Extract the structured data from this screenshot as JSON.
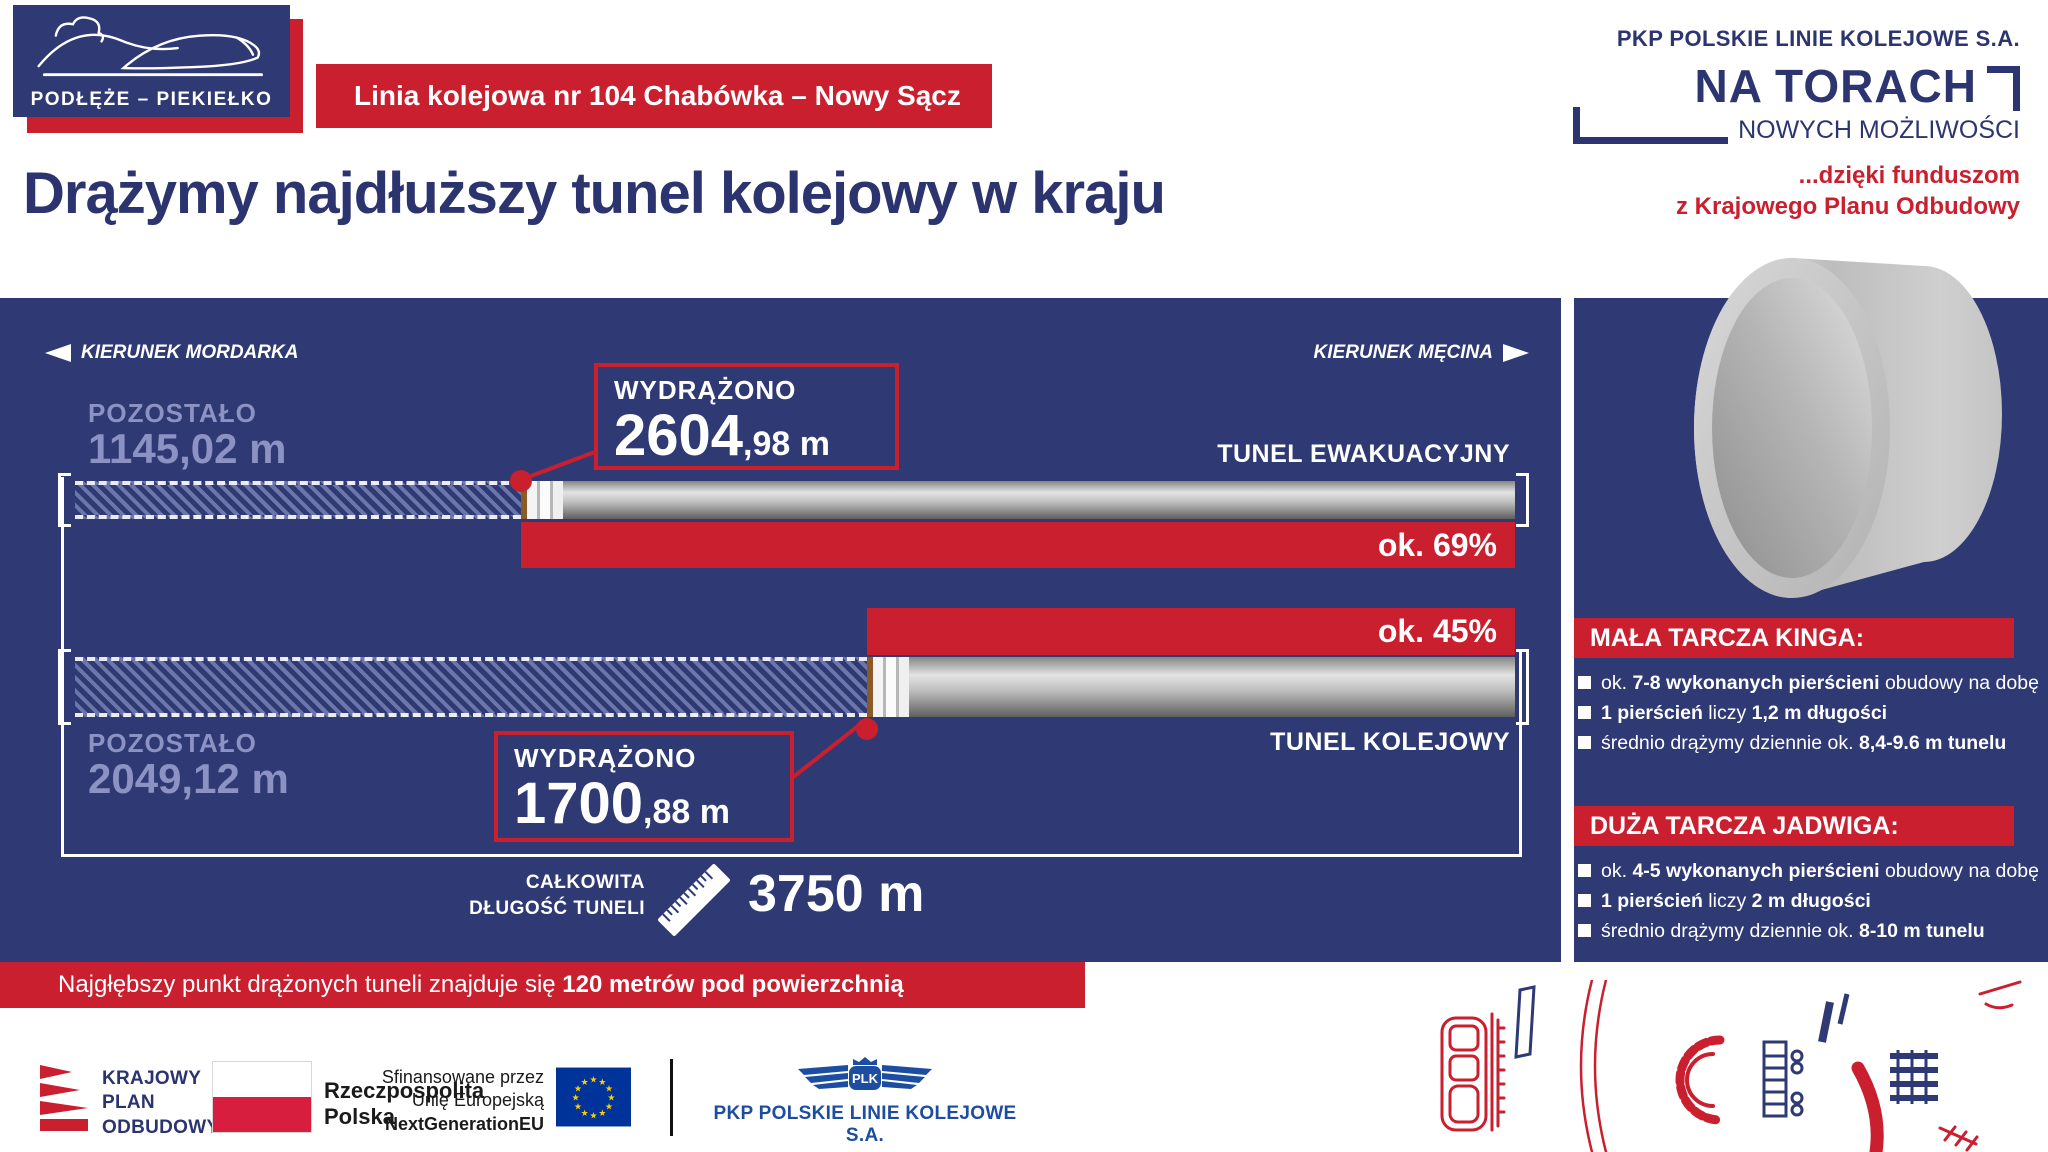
{
  "header": {
    "logo_title": "PODŁĘŻE – PIEKIEŁKO",
    "banner": "Linia kolejowa nr 104 Chabówka – Nowy Sącz",
    "title": "Drążymy najdłuższy tunel kolejowy w kraju",
    "company": "PKP POLSKIE LINIE KOLEJOWE S.A.",
    "brand_line1": "NA TORACH",
    "brand_line2": "NOWYCH MOŻLIWOŚCI",
    "funding_line1": "...dzięki funduszom",
    "funding_line2": "z Krajowego Planu Odbudowy"
  },
  "diagram": {
    "direction_left": "KIERUNEK MORDARKA",
    "direction_right": "KIERUNEK MĘCINA",
    "tunnels": [
      {
        "name": "TUNEL EWAKUACYJNY",
        "remaining_label": "POZOSTAŁO",
        "remaining_value": "1145,02 m",
        "excavated_label": "WYDRĄŻONO",
        "excavated_value_main": "2604",
        "excavated_value_frac": ",98 m",
        "progress_label": "ok. 69%",
        "progress_pct": 69
      },
      {
        "name": "TUNEL KOLEJOWY",
        "remaining_label": "POZOSTAŁO",
        "remaining_value": "2049,12 m",
        "excavated_label": "WYDRĄŻONO",
        "excavated_value_main": "1700",
        "excavated_value_frac": ",88 m",
        "progress_label": "ok. 45%",
        "progress_pct": 45
      }
    ],
    "total_label_line1": "CAŁKOWITA",
    "total_label_line2": "DŁUGOŚĆ TUNELI",
    "total_value": "3750 m",
    "depth_note_regular": "Najgłębszy punkt drążonych tuneli znajduje się ",
    "depth_note_bold": "120 metrów pod powierzchnią"
  },
  "shields": [
    {
      "title": "MAŁA TARCZA KINGA:",
      "bullets": [
        [
          {
            "t": "ok. "
          },
          {
            "t": "7-8 wykonanych pierścieni",
            "b": true
          },
          {
            "t": " obudowy na dobę"
          }
        ],
        [
          {
            "t": "1 pierścień",
            "b": true
          },
          {
            "t": " liczy "
          },
          {
            "t": "1,2 m długości",
            "b": true
          }
        ],
        [
          {
            "t": "średnio drążymy dziennie ok. "
          },
          {
            "t": "8,4-9.6 m tunelu",
            "b": true
          }
        ]
      ]
    },
    {
      "title": "DUŻA TARCZA JADWIGA:",
      "bullets": [
        [
          {
            "t": "ok. "
          },
          {
            "t": "4-5 wykonanych pierścieni",
            "b": true
          },
          {
            "t": " obudowy na dobę"
          }
        ],
        [
          {
            "t": "1 pierścień",
            "b": true
          },
          {
            "t": " liczy "
          },
          {
            "t": "2 m długości",
            "b": true
          }
        ],
        [
          {
            "t": "średnio drążymy dziennie ok. "
          },
          {
            "t": "8-10 m tunelu",
            "b": true
          }
        ]
      ]
    }
  ],
  "footer": {
    "kpo_line1": "KRAJOWY",
    "kpo_line2": "PLAN",
    "kpo_line3": "ODBUDOWY",
    "republic_line1": "Rzeczpospolita",
    "republic_line2": "Polska",
    "funded_line1": "Sfinansowane przez",
    "funded_line2": "Unię Europejską",
    "funded_line3": "NextGenerationEU",
    "plk_icon_label": "PLK",
    "plk_name": "PKP POLSKIE LINIE KOLEJOWE S.A."
  },
  "colors": {
    "navy": "#2f3a74",
    "red": "#c91f2e",
    "lavender": "#8d92c4",
    "plk_blue": "#1d4da1",
    "eu_blue": "#003399",
    "flag_red": "#d81e3f"
  }
}
